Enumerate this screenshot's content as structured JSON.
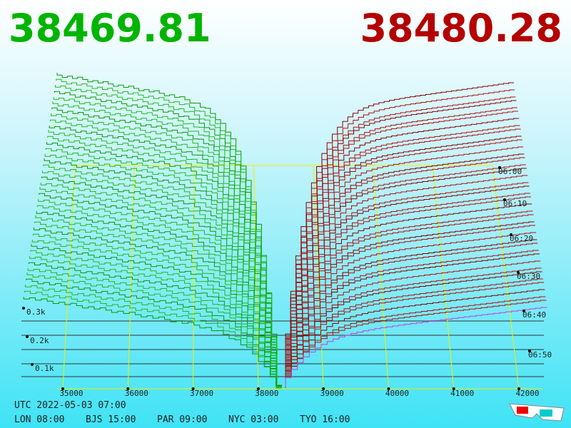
{
  "header": {
    "bid": "38469.81",
    "ask": "38480.28"
  },
  "price_axis": {
    "labels": [
      "35000",
      "36000",
      "37000",
      "38000",
      "39000",
      "40000",
      "41000",
      "42000"
    ]
  },
  "depth_axis": {
    "labels": [
      "0.3k",
      "0.2k",
      "0.1k"
    ]
  },
  "time_axis": {
    "labels": [
      "06:00",
      "06:10",
      "06:20",
      "06:30",
      "06:40",
      "06:50"
    ]
  },
  "footer": {
    "utc": "UTC 2022-05-03 07:00",
    "zones": [
      "LON 08:00",
      "BJS 15:00",
      "PAR 09:00",
      "NYC 03:00",
      "TYO 16:00"
    ]
  }
}
